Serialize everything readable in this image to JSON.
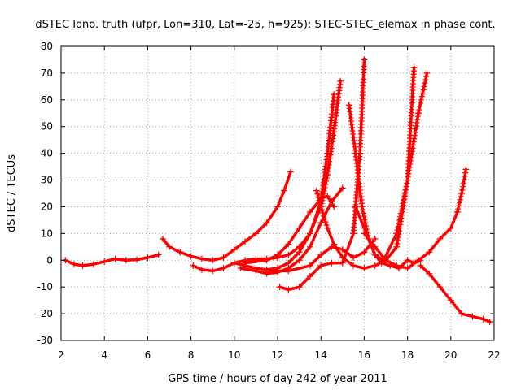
{
  "chart_data": {
    "type": "scatter",
    "title": "dSTEC Iono. truth (ufpr, Lon=310, Lat=-25, h=925): STEC-STEC_elemax in phase cont.",
    "xlabel": "GPS time / hours of day 242 of year 2011",
    "ylabel": "dSTEC  / TECUs",
    "xlim": [
      2,
      22
    ],
    "ylim": [
      -30,
      80
    ],
    "xticks": [
      "2",
      "4",
      "6",
      "8",
      "10",
      "12",
      "14",
      "16",
      "18",
      "20",
      "22"
    ],
    "yticks": [
      "-30",
      "-20",
      "-10",
      "0",
      "10",
      "20",
      "30",
      "40",
      "50",
      "60",
      "70",
      "80"
    ],
    "grid": true,
    "color": "#ff0000",
    "marker": "plus",
    "series": [
      {
        "x": [
          2.2,
          2.6,
          3.0,
          3.5,
          4.0,
          4.5,
          5.0,
          5.5,
          6.0,
          6.5
        ],
        "y": [
          0,
          -1.5,
          -2,
          -1.5,
          -0.5,
          0.5,
          0,
          0.2,
          1,
          2
        ]
      },
      {
        "x": [
          6.7,
          7.0,
          7.5,
          8.0,
          8.5,
          9.0,
          9.5,
          10.0,
          10.5,
          11.0,
          11.5,
          12.0,
          12.3,
          12.6
        ],
        "y": [
          8,
          5,
          3,
          1.5,
          0.5,
          0,
          1,
          4,
          7,
          10,
          14,
          20,
          26,
          33
        ]
      },
      {
        "x": [
          8.1,
          8.5,
          9.0,
          9.5,
          10.0,
          10.5,
          11.0,
          11.5,
          12.0,
          12.5,
          13.0,
          13.5,
          14.0,
          14.3,
          14.6,
          14.9
        ],
        "y": [
          -2,
          -3.5,
          -4,
          -3,
          -1,
          0,
          0.5,
          0.5,
          1,
          2,
          5,
          10,
          20,
          32,
          48,
          67
        ]
      },
      {
        "x": [
          10.0,
          10.5,
          11.0,
          11.5,
          12.0,
          12.5,
          13.0,
          13.5,
          14.0,
          14.3,
          14.6
        ],
        "y": [
          -1,
          -2,
          -3,
          -3.5,
          -3,
          -1,
          3,
          10,
          22,
          40,
          62
        ]
      },
      {
        "x": [
          10.3,
          11.0,
          11.5,
          12.0,
          12.5,
          13.0,
          13.5,
          14.0,
          14.5,
          15.0
        ],
        "y": [
          -3,
          -4,
          -5,
          -4.5,
          -3,
          0,
          5,
          14,
          22,
          27
        ]
      },
      {
        "x": [
          10.5,
          11.5,
          12.0,
          12.5,
          13.0,
          13.5,
          14.0,
          14.3,
          14.6
        ],
        "y": [
          -1,
          0,
          2,
          6,
          12,
          18,
          23,
          24,
          20
        ]
      },
      {
        "x": [
          12.1,
          12.5,
          13.0,
          13.5,
          14.0,
          14.5,
          15.0,
          15.5,
          15.8,
          16.0
        ],
        "y": [
          -10,
          -11,
          -10,
          -6,
          -2,
          -1,
          -1,
          10,
          40,
          75
        ]
      },
      {
        "x": [
          11.5,
          12.5,
          13.5,
          14.0,
          14.5,
          15.0,
          15.5,
          16.0,
          16.5
        ],
        "y": [
          -4,
          -4,
          -2,
          2,
          5,
          4,
          1,
          3,
          8
        ]
      },
      {
        "x": [
          13.8,
          14.0,
          14.3,
          14.6,
          15.0,
          15.5,
          16.0,
          16.5,
          17.0,
          17.5,
          18.0,
          18.3
        ],
        "y": [
          26,
          20,
          12,
          6,
          1,
          -2,
          -3,
          -2,
          0,
          5,
          30,
          72
        ]
      },
      {
        "x": [
          15.3,
          15.6,
          15.9,
          16.2,
          16.5,
          16.9,
          17.5,
          18.0,
          18.5,
          18.9
        ],
        "y": [
          58,
          40,
          20,
          8,
          2,
          0,
          10,
          30,
          55,
          70
        ]
      },
      {
        "x": [
          15.6,
          16.0,
          16.5,
          16.8,
          17.2,
          17.6,
          18.0,
          18.3,
          18.6
        ],
        "y": [
          20,
          12,
          2,
          -1,
          -2,
          -3,
          0,
          -1,
          0
        ]
      },
      {
        "x": [
          16.0,
          16.5,
          17.0,
          17.5,
          18.0,
          18.5,
          19.0,
          19.5,
          20.0,
          20.3,
          20.5,
          20.7
        ],
        "y": [
          10,
          5,
          0,
          -2,
          -3,
          0,
          3,
          8,
          12,
          18,
          25,
          34
        ]
      },
      {
        "x": [
          18.6,
          19.0,
          19.5,
          20.0,
          20.5,
          21.0,
          21.5,
          21.8
        ],
        "y": [
          -2,
          -5,
          -10,
          -15,
          -20,
          -21,
          -22,
          -23
        ]
      }
    ]
  }
}
